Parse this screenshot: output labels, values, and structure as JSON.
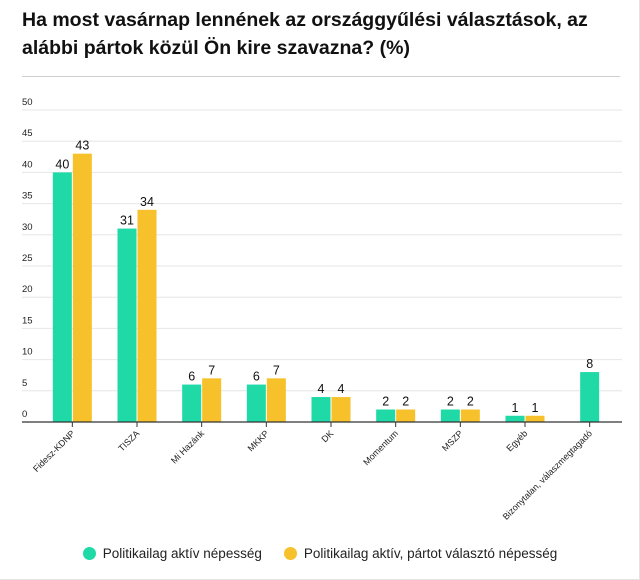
{
  "title": "Ha most vasárnap lennének az országgyűlési választások, az alábbi pártok közül Ön kire szavazna? (%)",
  "colors": {
    "series1": "#1fd9a6",
    "series2": "#f6c12a",
    "grid": "#e6e6e6",
    "axis": "#333333"
  },
  "chart_data": {
    "type": "bar",
    "title": "Ha most vasárnap lennének az országgyűlési választások, az alábbi pártok közül Ön kire szavazna? (%)",
    "xlabel": "",
    "ylabel": "",
    "ylim": [
      0,
      50
    ],
    "yticks": [
      0,
      5,
      10,
      15,
      20,
      25,
      30,
      35,
      40,
      45,
      50
    ],
    "grid": true,
    "legend_position": "bottom",
    "categories": [
      "Fidesz-KDNP",
      "TISZA",
      "Mi Hazánk",
      "MKKP",
      "DK",
      "Momentum",
      "MSZP",
      "Egyéb",
      "Bizonytalan, válaszmegtagadó"
    ],
    "series": [
      {
        "name": "Politikailag aktív népesség",
        "values": [
          40,
          31,
          6,
          6,
          4,
          2,
          2,
          1,
          8
        ]
      },
      {
        "name": "Politikailag aktív, pártot választó népesség",
        "values": [
          43,
          34,
          7,
          7,
          4,
          2,
          2,
          1,
          null
        ]
      }
    ]
  }
}
